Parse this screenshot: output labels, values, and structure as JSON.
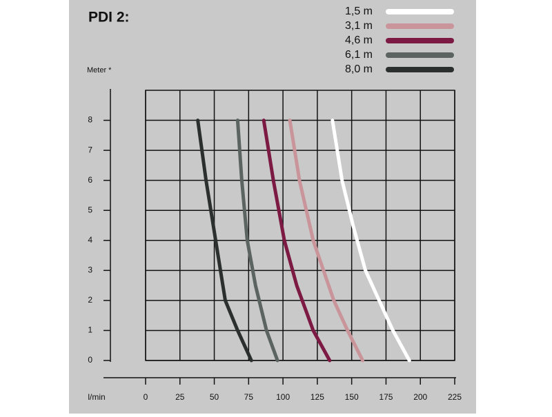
{
  "chart_data": {
    "type": "line",
    "title": "PDI 2:",
    "ylabel": "Meter *",
    "xlabel": "l/min",
    "xlim": [
      0,
      225
    ],
    "ylim": [
      0,
      9
    ],
    "xticks": [
      0,
      25,
      50,
      75,
      100,
      125,
      150,
      175,
      200,
      225
    ],
    "yticks": [
      0,
      1,
      2,
      3,
      4,
      5,
      6,
      7,
      8
    ],
    "grid": true,
    "legend": "top-right",
    "series": [
      {
        "name": "1,5 m",
        "color": "#ffffff",
        "x": [
          136,
          143,
          151,
          160,
          170,
          180,
          192
        ],
        "values": [
          8,
          6,
          4.5,
          3,
          2,
          1,
          0
        ]
      },
      {
        "name": "3,1 m",
        "color": "#c9959a",
        "x": [
          105,
          112,
          122,
          137,
          147,
          158
        ],
        "values": [
          8,
          6,
          4,
          2,
          1,
          0
        ]
      },
      {
        "name": "4,6 m",
        "color": "#7c1a44",
        "x": [
          86,
          93,
          101,
          110,
          122,
          134
        ],
        "values": [
          8,
          6,
          4,
          2.5,
          1,
          0
        ]
      },
      {
        "name": "6,1 m",
        "color": "#5b6461",
        "x": [
          67,
          70,
          74,
          80,
          88,
          96
        ],
        "values": [
          8,
          6,
          4,
          2.5,
          1,
          0
        ]
      },
      {
        "name": "8,0 m",
        "color": "#2b2f2e",
        "x": [
          38,
          44,
          51,
          58,
          67,
          77
        ],
        "values": [
          8,
          6,
          4,
          2,
          1,
          0
        ]
      }
    ]
  }
}
